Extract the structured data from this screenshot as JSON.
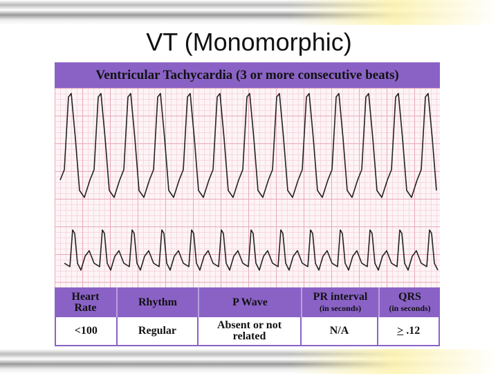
{
  "title": "VT (Monomorphic)",
  "figure": {
    "banner": "Ventricular Tachycardia (3 or more consecutive beats)",
    "table": {
      "headers": [
        {
          "label": "Heart Rate"
        },
        {
          "label": "Rhythm"
        },
        {
          "label": "P Wave"
        },
        {
          "label": "PR interval",
          "sub": "(in seconds)"
        },
        {
          "label": "QRS",
          "sub": "(in seconds)"
        }
      ],
      "row": {
        "heart_rate": "<100",
        "rhythm": "Regular",
        "p_wave": "Absent or not related",
        "pr_interval": "N/A",
        "qrs": {
          "symbol": ">",
          "value": ".12"
        }
      }
    }
  }
}
